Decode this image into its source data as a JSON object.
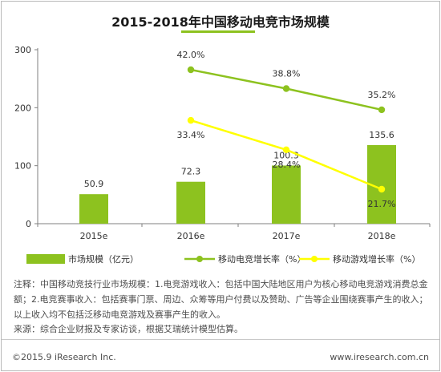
{
  "chart_data": {
    "title": "2015-2018年中国移动电竞市场规模",
    "categories": [
      "2015e",
      "2016e",
      "2017e",
      "2018e"
    ],
    "bar_series": {
      "name": "市场规模（亿元）",
      "values": [
        50.9,
        72.3,
        100.3,
        135.6
      ],
      "color": "#8dc21f"
    },
    "line_series": [
      {
        "name": "移动电竞增长率（%）",
        "values": [
          42.0,
          38.8,
          35.2
        ],
        "labels": [
          "42.0%",
          "38.8%",
          "35.2%"
        ],
        "color": "#8dc21f"
      },
      {
        "name": "移动游戏增长率（%）",
        "values": [
          33.4,
          28.4,
          21.7
        ],
        "labels": [
          "33.4%",
          "28.4%",
          "21.7%"
        ],
        "color": "#ffff00"
      }
    ],
    "line_categories": [
      "2016e",
      "2017e",
      "2018e"
    ],
    "y_ticks": [
      0,
      100,
      200,
      300
    ],
    "ylim": [
      0,
      300
    ],
    "grid": false,
    "legend_position": "bottom"
  },
  "notes": {
    "line1": "注释：中国移动竞技行业市场规模：1.电竞游戏收入：包括中国大陆地区用户为核心移动电竞游戏消费总金额；2.电竞赛事收入：包括赛事门票、周边、众筹等用户付费以及赞助、广告等企业围绕赛事产生的收入；以上收入均不包括泛移动电竞游戏及赛事产生的收入。",
    "source": "来源：综合企业财报及专家访谈，根据艾瑞统计模型估算。"
  },
  "footer": {
    "copyright": "©2015.9 iResearch Inc.",
    "website": "www.iresearch.com.cn"
  }
}
